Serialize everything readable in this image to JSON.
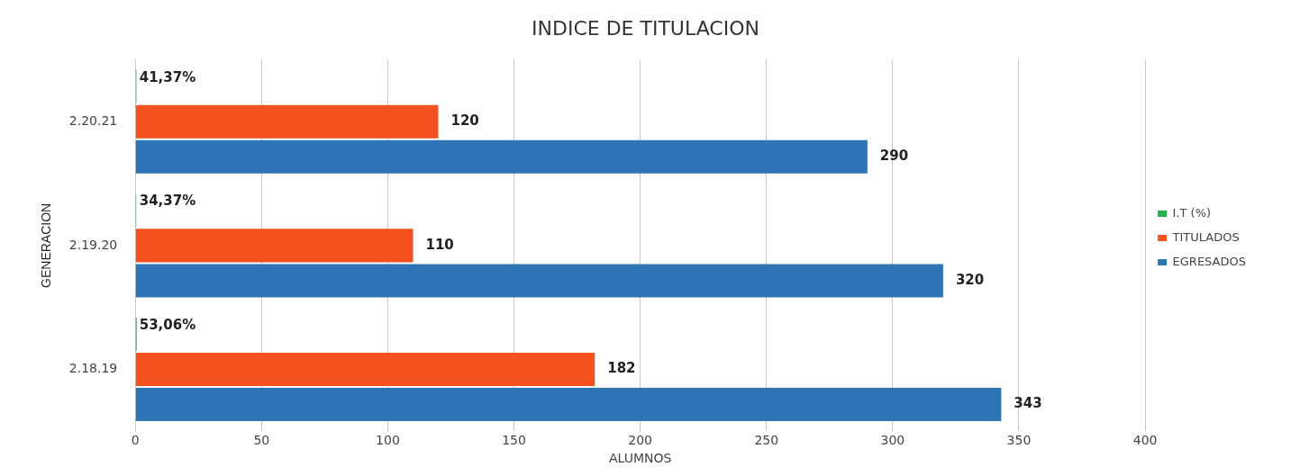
{
  "chart_data": {
    "type": "bar",
    "orientation": "horizontal",
    "title": "INDICE DE TITULACION",
    "xlabel": "ALUMNOS",
    "ylabel": "GENERACION",
    "categories": [
      "2.20.21",
      "2.19.20",
      "2.18.19"
    ],
    "series": [
      {
        "name": "I.T (%)",
        "color": "#22b14c",
        "values": [
          0.4137,
          0.3437,
          0.5306
        ],
        "value_labels": [
          "41,37%",
          "34,37%",
          "53,06%"
        ]
      },
      {
        "name": "TITULADOS",
        "color": "#f4511e",
        "values": [
          120,
          110,
          182
        ]
      },
      {
        "name": "EGRESADOS",
        "color": "#2e75b6",
        "values": [
          290,
          320,
          343
        ]
      }
    ],
    "xlim": [
      0,
      400
    ],
    "xticks": [
      0,
      50,
      100,
      150,
      200,
      250,
      300,
      350,
      400
    ],
    "grid": "x",
    "legend": "right",
    "data_labels": true
  }
}
